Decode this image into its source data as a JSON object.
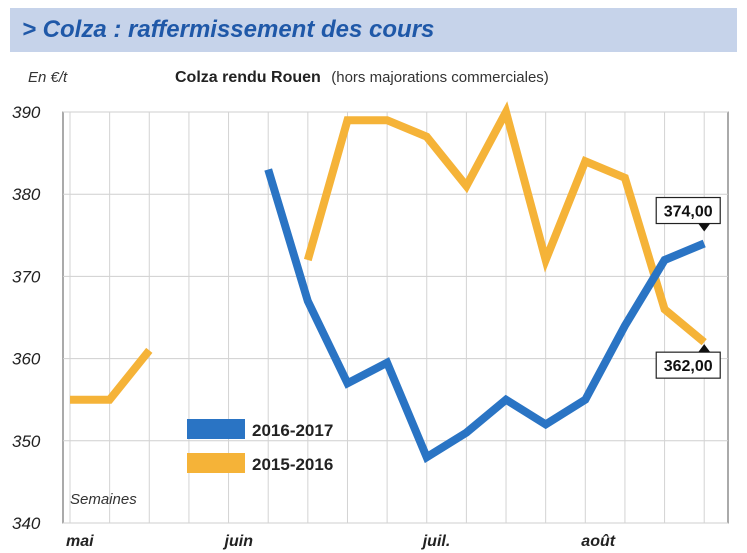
{
  "header": {
    "title": "> Colza : raffermissement des cours"
  },
  "chart_data": {
    "type": "line",
    "unit_label": "En €/t",
    "title": "Colza rendu Rouen",
    "subtitle": "(hors majorations commerciales)",
    "xlabel": "Semaines",
    "ylim": [
      340,
      390
    ],
    "yticks": [
      340,
      350,
      360,
      370,
      380,
      390
    ],
    "x_months": [
      {
        "label": "mai",
        "week": 0
      },
      {
        "label": "juin",
        "week": 4
      },
      {
        "label": "juil.",
        "week": 9
      },
      {
        "label": "août",
        "week": 13
      }
    ],
    "grid_weeks": [
      0,
      1,
      2,
      3,
      4,
      5,
      6,
      7,
      8,
      9,
      10,
      11,
      12,
      13,
      14,
      15,
      16
    ],
    "series": [
      {
        "name": "2016-2017",
        "color": "#2a74c4",
        "points": [
          [
            5,
            383
          ],
          [
            6,
            367
          ],
          [
            7,
            357
          ],
          [
            8,
            359.5
          ],
          [
            9,
            348
          ],
          [
            10,
            351
          ],
          [
            11,
            355
          ],
          [
            12,
            352
          ],
          [
            13,
            355
          ],
          [
            14,
            364
          ],
          [
            15,
            372
          ],
          [
            16,
            374
          ]
        ]
      },
      {
        "name": "2015-2016",
        "color": "#f5b338",
        "segments": [
          [
            [
              0,
              355
            ],
            [
              1,
              355
            ],
            [
              2,
              361
            ]
          ],
          [
            [
              6,
              372
            ],
            [
              7,
              389
            ],
            [
              8,
              389
            ],
            [
              9,
              387
            ],
            [
              10,
              381
            ],
            [
              11,
              390
            ],
            [
              12,
              372
            ],
            [
              13,
              384
            ],
            [
              14,
              382
            ],
            [
              15,
              366
            ],
            [
              16,
              362
            ]
          ]
        ]
      }
    ],
    "data_labels": [
      {
        "series": "2016-2017",
        "text": "374,00",
        "week": 16,
        "value": 374
      },
      {
        "series": "2015-2016",
        "text": "362,00",
        "week": 16,
        "value": 362
      }
    ],
    "grid": true,
    "legend_position": "bottom-left"
  }
}
